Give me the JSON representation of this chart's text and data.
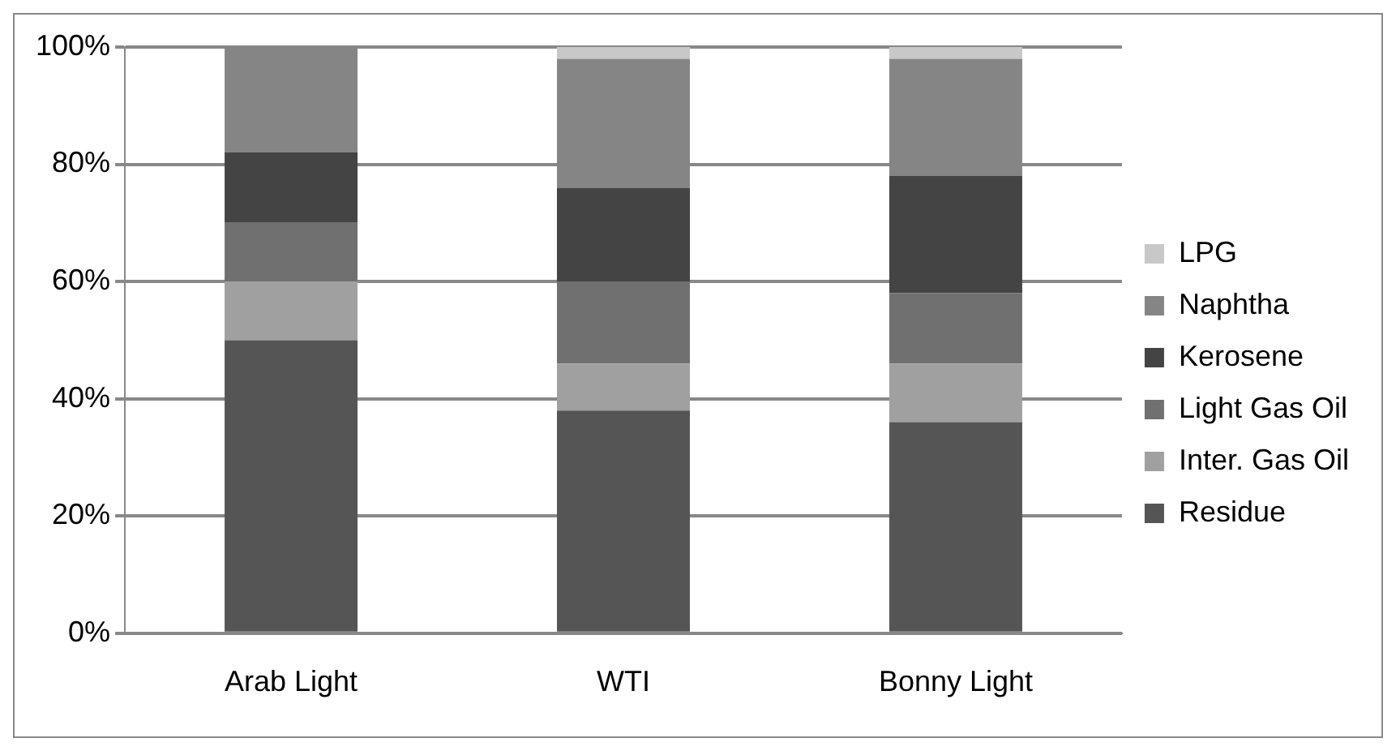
{
  "chart_data": {
    "type": "bar",
    "stacked": true,
    "categories": [
      "Arab Light",
      "WTI",
      "Bonny Light"
    ],
    "series": [
      {
        "name": "Residue",
        "color": "#555555",
        "values": [
          50,
          38,
          36
        ]
      },
      {
        "name": "Inter. Gas Oil",
        "color": "#a0a0a0",
        "values": [
          10,
          8,
          10
        ]
      },
      {
        "name": "Light Gas Oil",
        "color": "#707070",
        "values": [
          10,
          14,
          12
        ]
      },
      {
        "name": "Kerosene",
        "color": "#444444",
        "values": [
          12,
          16,
          20
        ]
      },
      {
        "name": "Naphtha",
        "color": "#858585",
        "values": [
          18,
          22,
          20
        ]
      },
      {
        "name": "LPG",
        "color": "#c8c8c8",
        "values": [
          0,
          2,
          2
        ]
      }
    ],
    "ylim": [
      0,
      100
    ],
    "yticks": [
      {
        "value": 0,
        "label": "0%"
      },
      {
        "value": 20,
        "label": "20%"
      },
      {
        "value": 40,
        "label": "40%"
      },
      {
        "value": 60,
        "label": "60%"
      },
      {
        "value": 80,
        "label": "80%"
      },
      {
        "value": 100,
        "label": "100%"
      }
    ],
    "grid": "y",
    "legend": "right"
  }
}
